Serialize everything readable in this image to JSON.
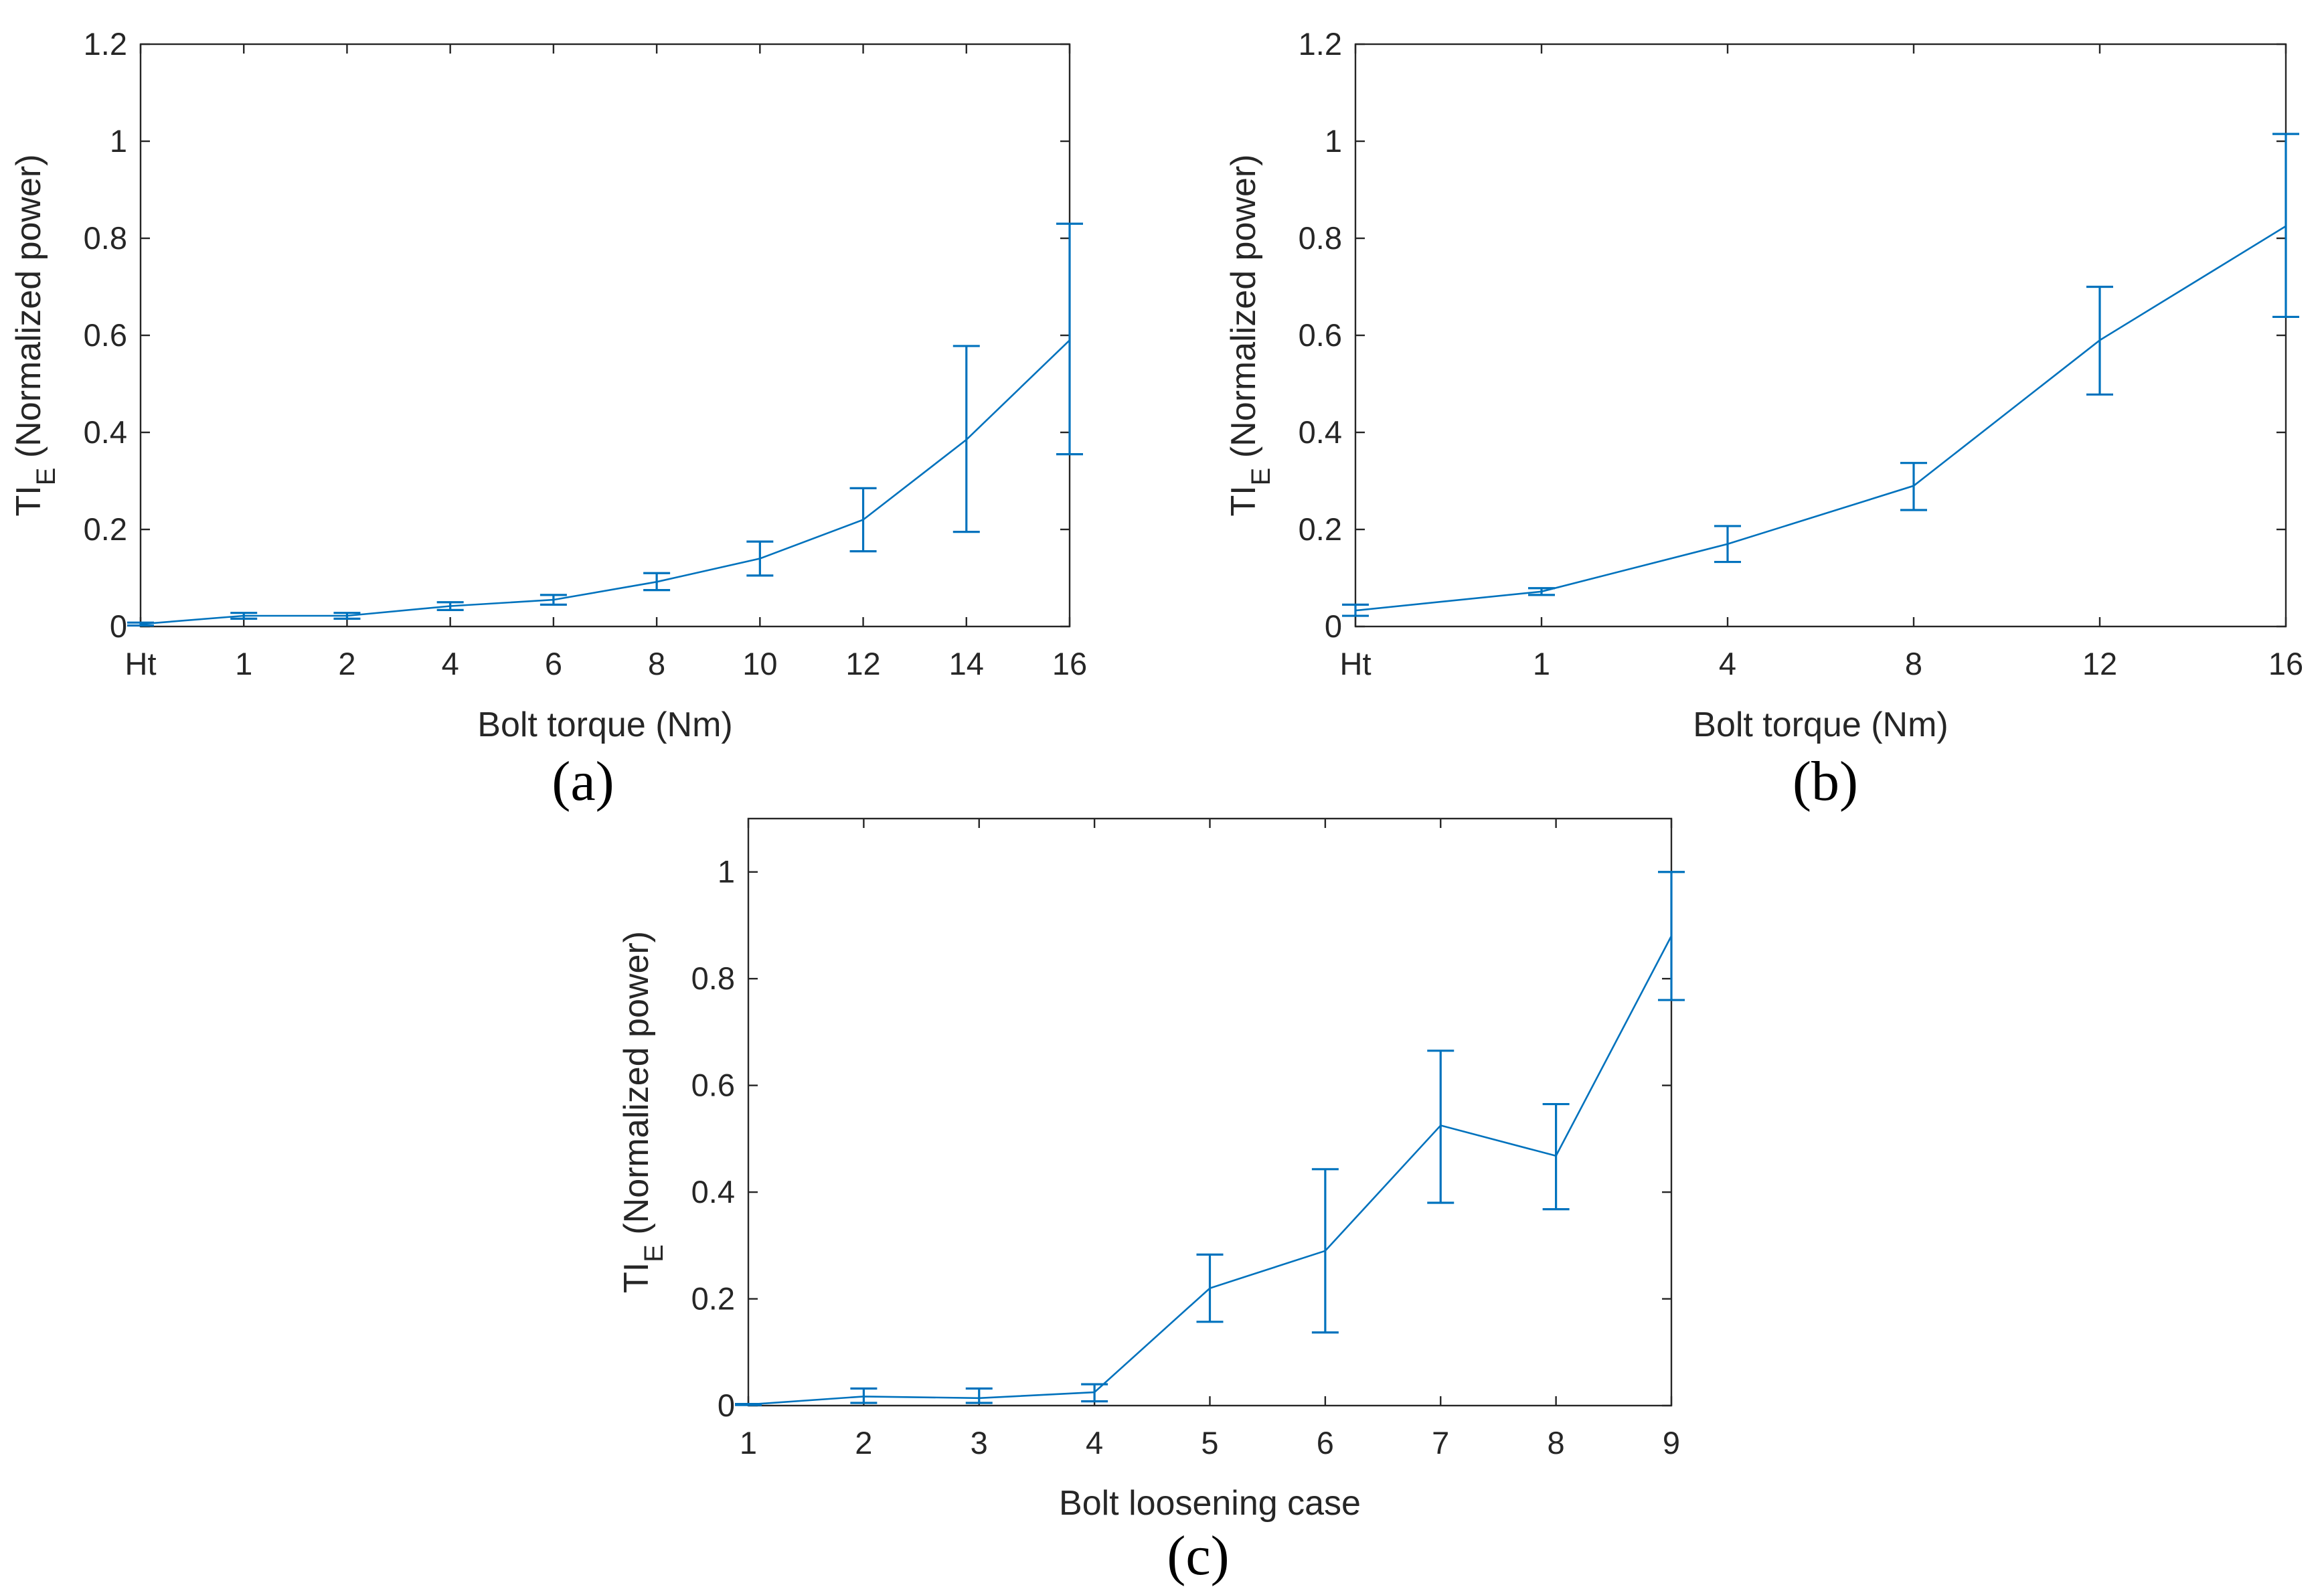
{
  "chart_data": [
    {
      "type": "line",
      "panel": "(a)",
      "xlabel": "Bolt torque (Nm)",
      "ylabel_main": "TI",
      "ylabel_sub": "E",
      "ylabel_rest": " (Normalized power)",
      "categories": [
        "Ht",
        "1",
        "2",
        "4",
        "6",
        "8",
        "10",
        "12",
        "14",
        "16"
      ],
      "ylim": [
        0,
        1.2
      ],
      "yticks": [
        0,
        0.2,
        0.4,
        0.6,
        0.8,
        1.0,
        1.2
      ],
      "ytick_labels": [
        "0",
        "0.2",
        "0.4",
        "0.6",
        "0.8",
        "1",
        "1.2"
      ],
      "series": [
        {
          "name": "TI_E",
          "color": "#0072BD",
          "values": [
            0.005,
            0.022,
            0.022,
            0.042,
            0.055,
            0.092,
            0.14,
            0.22,
            0.385,
            0.59
          ],
          "err_low": [
            0.002,
            0.016,
            0.016,
            0.034,
            0.045,
            0.075,
            0.105,
            0.155,
            0.195,
            0.355
          ],
          "err_high": [
            0.008,
            0.028,
            0.028,
            0.05,
            0.065,
            0.11,
            0.175,
            0.285,
            0.578,
            0.83
          ]
        }
      ]
    },
    {
      "type": "line",
      "panel": "(b)",
      "xlabel": "Bolt torque (Nm)",
      "ylabel_main": "TI",
      "ylabel_sub": "E",
      "ylabel_rest": " (Normalized power)",
      "categories": [
        "Ht",
        "1",
        "4",
        "8",
        "12",
        "16"
      ],
      "ylim": [
        0,
        1.2
      ],
      "yticks": [
        0,
        0.2,
        0.4,
        0.6,
        0.8,
        1.0,
        1.2
      ],
      "ytick_labels": [
        "0",
        "0.2",
        "0.4",
        "0.6",
        "0.8",
        "1",
        "1.2"
      ],
      "series": [
        {
          "name": "TI_E",
          "color": "#0072BD",
          "values": [
            0.033,
            0.072,
            0.17,
            0.29,
            0.59,
            0.825
          ],
          "err_low": [
            0.022,
            0.065,
            0.133,
            0.24,
            0.478,
            0.638
          ],
          "err_high": [
            0.045,
            0.079,
            0.207,
            0.337,
            0.7,
            1.015
          ]
        }
      ]
    },
    {
      "type": "line",
      "panel": "(c)",
      "xlabel": "Bolt loosening case",
      "ylabel_main": "TI",
      "ylabel_sub": "E",
      "ylabel_rest": " (Normalized power)",
      "categories": [
        "1",
        "2",
        "3",
        "4",
        "5",
        "6",
        "7",
        "8",
        "9"
      ],
      "ylim": [
        0,
        1.1
      ],
      "yticks": [
        0,
        0.2,
        0.4,
        0.6,
        0.8,
        1.0
      ],
      "ytick_labels": [
        "0",
        "0.2",
        "0.4",
        "0.6",
        "0.8",
        "1"
      ],
      "series": [
        {
          "name": "TI_E",
          "color": "#0072BD",
          "values": [
            0.002,
            0.017,
            0.014,
            0.025,
            0.22,
            0.29,
            0.525,
            0.468,
            0.88
          ],
          "err_low": [
            0.001,
            0.005,
            0.005,
            0.008,
            0.157,
            0.137,
            0.38,
            0.368,
            0.76
          ],
          "err_high": [
            0.003,
            0.032,
            0.032,
            0.04,
            0.283,
            0.443,
            0.665,
            0.565,
            1.0
          ]
        }
      ]
    }
  ]
}
